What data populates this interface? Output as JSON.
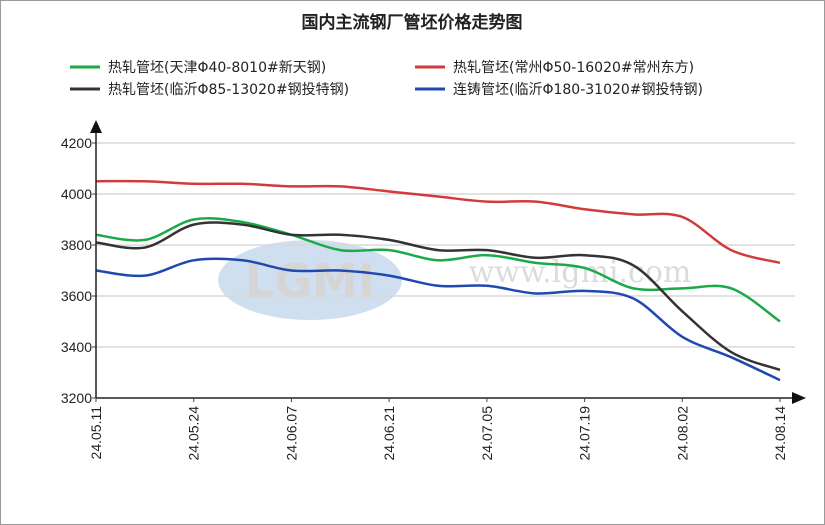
{
  "chart_data": {
    "type": "line",
    "title": "国内主流钢厂管坯价格走势图",
    "xlabel": "",
    "ylabel": "",
    "ylim": [
      3200,
      4200
    ],
    "yticks": [
      "4200",
      "4000",
      "3800",
      "3600",
      "3400",
      "3200"
    ],
    "xtick_labels": [
      "24.05.11",
      "24.05.24",
      "24.06.07",
      "24.06.21",
      "24.07.05",
      "24.07.19",
      "24.08.02",
      "24.08.14"
    ],
    "grid": "horizontal",
    "legend_position": "top",
    "series": [
      {
        "name": "热轧管坯(天津Φ40-8010#新天钢)",
        "color": "#1aaa48",
        "values": [
          3840,
          3820,
          3900,
          3890,
          3840,
          3780,
          3780,
          3740,
          3760,
          3730,
          3710,
          3630,
          3630,
          3630,
          3500
        ]
      },
      {
        "name": "热轧管坯(常州Φ50-16020#常州东方)",
        "color": "#d23b3b",
        "values": [
          4050,
          4050,
          4040,
          4040,
          4030,
          4030,
          4010,
          3990,
          3970,
          3970,
          3940,
          3920,
          3910,
          3780,
          3730
        ]
      },
      {
        "name": "热轧管坯(临沂Φ85-13020#钢投特钢)",
        "color": "#333333",
        "values": [
          3810,
          3790,
          3880,
          3880,
          3840,
          3840,
          3820,
          3780,
          3780,
          3750,
          3760,
          3720,
          3540,
          3380,
          3310
        ]
      },
      {
        "name": "连铸管坯(临沂Φ180-31020#钢投特钢)",
        "color": "#1f48b0",
        "values": [
          3700,
          3680,
          3740,
          3740,
          3700,
          3700,
          3680,
          3640,
          3640,
          3610,
          3620,
          3590,
          3440,
          3360,
          3270
        ]
      }
    ],
    "watermark": {
      "logo": "LGMI",
      "url": "www.lgmi.com"
    }
  }
}
